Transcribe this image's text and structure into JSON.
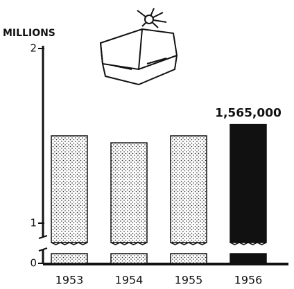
{
  "chart_data": {
    "type": "bar",
    "y_label": "MILLIONS",
    "categories": [
      "1953",
      "1954",
      "1955",
      "1956"
    ],
    "values": [
      1.5,
      1.46,
      1.5,
      1.565
    ],
    "value_labels": [
      null,
      null,
      null,
      "1,565,000"
    ],
    "colors": [
      "#ffffff",
      "#ffffff",
      "#ffffff",
      "#111111"
    ],
    "ylim": [
      0,
      2
    ],
    "yticks": [
      0,
      1,
      2
    ],
    "ybreak": [
      0,
      1
    ]
  }
}
